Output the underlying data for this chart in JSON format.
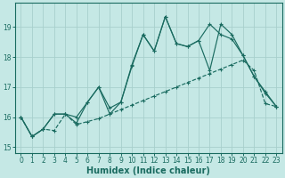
{
  "xlabel": "Humidex (Indice chaleur)",
  "xlim": [
    -0.5,
    23.5
  ],
  "ylim": [
    14.8,
    19.8
  ],
  "yticks": [
    15,
    16,
    17,
    18,
    19
  ],
  "xticks": [
    0,
    1,
    2,
    3,
    4,
    5,
    6,
    7,
    8,
    9,
    10,
    11,
    12,
    13,
    14,
    15,
    16,
    17,
    18,
    19,
    20,
    21,
    22,
    23
  ],
  "bg_color": "#c5e8e5",
  "grid_color": "#a8d0cc",
  "line_color": "#1a6b60",
  "line1_x": [
    0,
    1,
    2,
    3,
    4,
    5,
    6,
    7,
    8,
    9,
    10,
    11,
    12,
    13,
    14,
    15,
    16,
    17,
    18,
    19,
    20,
    21,
    22,
    23
  ],
  "line1_y": [
    16.0,
    15.35,
    15.6,
    15.55,
    16.1,
    15.75,
    15.85,
    15.95,
    16.1,
    16.25,
    16.4,
    16.55,
    16.7,
    16.85,
    17.0,
    17.15,
    17.3,
    17.45,
    17.6,
    17.75,
    17.9,
    17.55,
    16.45,
    16.35
  ],
  "line2_x": [
    0,
    1,
    2,
    3,
    4,
    5,
    6,
    7,
    8,
    9,
    10,
    11,
    12,
    13,
    14,
    15,
    16,
    17,
    18,
    19,
    20,
    21,
    22,
    23
  ],
  "line2_y": [
    16.0,
    15.35,
    15.6,
    16.1,
    16.1,
    16.0,
    16.5,
    17.0,
    16.1,
    16.5,
    17.7,
    18.75,
    18.2,
    19.35,
    18.45,
    18.35,
    18.55,
    19.1,
    18.75,
    18.6,
    18.05,
    17.35,
    16.8,
    16.35
  ],
  "line3_x": [
    0,
    1,
    2,
    3,
    4,
    5,
    6,
    7,
    8,
    9,
    10,
    11,
    12,
    13,
    14,
    15,
    16,
    17,
    18,
    19,
    20,
    21,
    22,
    23
  ],
  "line3_y": [
    16.0,
    15.35,
    15.6,
    16.1,
    16.1,
    15.8,
    16.5,
    17.0,
    16.3,
    16.5,
    17.75,
    18.75,
    18.2,
    19.35,
    18.45,
    18.35,
    18.55,
    17.55,
    19.1,
    18.75,
    18.05,
    17.35,
    16.85,
    16.35
  ]
}
